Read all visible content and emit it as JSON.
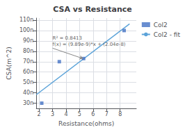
{
  "chart_data": {
    "type": "scatter",
    "title": "CSA vs Resistance",
    "xlabel": "Resistance(ohms)",
    "ylabel": "CSA(m^2)",
    "series": [
      {
        "name": "Col2",
        "type": "scatter",
        "color": "#4472c4",
        "marker": "square",
        "x": [
          2.2,
          3.5,
          5.3,
          8.3
        ],
        "values": [
          3e-08,
          7e-08,
          7.3e-08,
          1e-07
        ]
      },
      {
        "name": "Col2 - fit",
        "type": "line",
        "color": "#5ba3d9",
        "line_style": "solid",
        "x": [
          1.8,
          8.7
        ],
        "values": [
          3.8202e-08,
          1.06443e-07
        ]
      }
    ],
    "annotations": [
      {
        "text": "R² = 0.8413\nf(x) = (9.89e-9)*x + (2.04e-8)",
        "xy": [
          5.25,
          7.3e-08
        ],
        "xytext": [
          3.0,
          8.3e-08
        ]
      }
    ],
    "xlim": [
      1.8,
      9.2
    ],
    "xticks": [
      2,
      3,
      4,
      5,
      6,
      7,
      8
    ],
    "ylim": [
      2.5e-08,
      1.12e-07
    ],
    "yticks": [
      {
        "value": 3e-08,
        "label": "30n"
      },
      {
        "value": 4e-08,
        "label": "40n"
      },
      {
        "value": 5e-08,
        "label": "50n"
      },
      {
        "value": 6e-08,
        "label": "60n"
      },
      {
        "value": 7e-08,
        "label": "70n"
      },
      {
        "value": 8e-08,
        "label": "80n"
      },
      {
        "value": 9e-08,
        "label": "90n"
      },
      {
        "value": 1e-07,
        "label": "100n"
      },
      {
        "value": 1.1e-07,
        "label": "110n"
      }
    ],
    "grid": true,
    "legend": "right"
  }
}
